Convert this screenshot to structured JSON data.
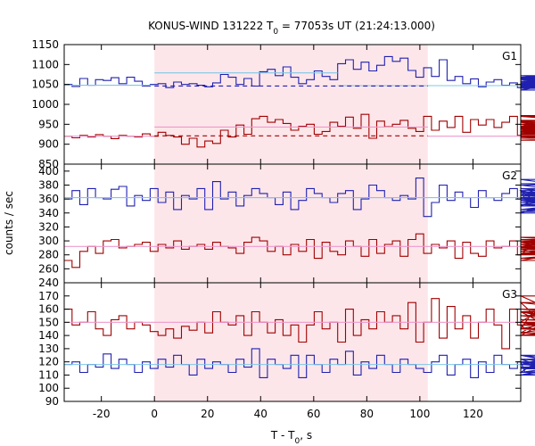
{
  "title": "KONUS-WIND 131222 T",
  "title_sub": "0",
  "title_tail": " = 77053s UT (21:24:13.000)",
  "ylabel": "counts / sec",
  "xlabel_main": "T - T",
  "xlabel_sub": "0",
  "xlabel_tail": ", s",
  "colors": {
    "red": "#a00000",
    "blue": "#2020b0",
    "lightblue": "#7ec8e8",
    "pink": "#ee99cc",
    "highlight": "#fde6ea"
  },
  "chart_data": [
    {
      "type": "line",
      "panel_label": "G1",
      "xlim": [
        -34,
        138
      ],
      "ylim": [
        850,
        1150
      ],
      "yticks": [
        850,
        900,
        950,
        1000,
        1050,
        1100,
        1150
      ],
      "xticks": [
        -20,
        0,
        20,
        40,
        60,
        80,
        100,
        120
      ],
      "highlight_x": [
        0,
        103
      ],
      "series": [
        {
          "color": "blue",
          "step": 2.944,
          "x0": -34,
          "values": [
            1050,
            1045,
            1065,
            1048,
            1062,
            1060,
            1067,
            1052,
            1068,
            1058,
            1046,
            1050,
            1052,
            1042,
            1056,
            1050,
            1052,
            1048,
            1044,
            1054,
            1075,
            1068,
            1050,
            1065,
            1046,
            1082,
            1088,
            1072,
            1094,
            1068,
            1052,
            1062,
            1084,
            1070,
            1062,
            1102,
            1112,
            1088,
            1106,
            1084,
            1098,
            1120,
            1108,
            1116,
            1085,
            1068,
            1092,
            1070,
            1112,
            1060,
            1070,
            1052,
            1064,
            1044,
            1056,
            1062,
            1048,
            1054,
            1042,
            1066,
            1050,
            1048,
            1040,
            1052,
            1036,
            1058,
            1068,
            1048,
            1072,
            1052,
            1058,
            1040,
            1064,
            1050,
            1052,
            1054,
            1046,
            1062,
            1044,
            1072,
            1056,
            1050,
            1068,
            1044,
            1046,
            1054,
            1044,
            1040,
            1058,
            1046,
            1068,
            1048,
            1064,
            1054,
            1042,
            1056,
            1040,
            1050
          ]
        },
        {
          "color": "red",
          "step": 2.944,
          "x0": -34,
          "values": [
            920,
            916,
            922,
            918,
            924,
            920,
            914,
            922,
            920,
            918,
            926,
            920,
            930,
            922,
            918,
            900,
            915,
            893,
            908,
            902,
            935,
            918,
            948,
            925,
            964,
            970,
            955,
            962,
            952,
            935,
            945,
            950,
            925,
            932,
            955,
            945,
            968,
            940,
            975,
            915,
            958,
            944,
            950,
            960,
            940,
            932,
            970,
            935,
            958,
            942,
            970,
            930,
            962,
            948,
            962,
            942,
            955,
            970,
            922,
            950,
            942,
            938,
            955,
            944,
            960,
            932,
            950,
            940,
            955,
            925,
            958,
            935,
            950,
            972,
            935,
            950,
            922,
            915,
            928,
            918,
            930,
            918,
            935,
            910,
            925,
            945,
            918,
            928,
            915,
            935,
            922,
            918,
            970,
            915,
            928,
            918,
            930,
            920
          ]
        }
      ],
      "levels": [
        {
          "color": "lightblue",
          "dashed": false,
          "segments": [
            [
              -34,
              0,
              1048
            ],
            [
              0,
              69,
              1079
            ],
            [
              69,
              138,
              1047
            ]
          ]
        },
        {
          "color": "blue",
          "dashed": true,
          "segments": [
            [
              0,
              103,
              1046
            ]
          ]
        },
        {
          "color": "pink",
          "dashed": false,
          "segments": [
            [
              -34,
              0,
              920
            ],
            [
              0,
              103,
              943
            ],
            [
              103,
              138,
              920
            ]
          ]
        },
        {
          "color": "red",
          "dashed": true,
          "segments": [
            [
              0,
              103,
              921
            ]
          ]
        }
      ]
    },
    {
      "type": "line",
      "panel_label": "G2",
      "xlim": [
        -34,
        138
      ],
      "ylim": [
        240,
        410
      ],
      "yticks": [
        240,
        260,
        280,
        300,
        320,
        340,
        360,
        380,
        400
      ],
      "xticks": [
        -20,
        0,
        20,
        40,
        60,
        80,
        100,
        120
      ],
      "highlight_x": [
        0,
        103
      ],
      "series": [
        {
          "color": "blue",
          "step": 2.944,
          "x0": -34,
          "values": [
            360,
            372,
            352,
            375,
            362,
            360,
            374,
            378,
            350,
            365,
            358,
            375,
            355,
            370,
            345,
            365,
            360,
            375,
            345,
            385,
            360,
            370,
            350,
            365,
            375,
            368,
            362,
            352,
            370,
            345,
            358,
            375,
            368,
            362,
            355,
            368,
            372,
            345,
            360,
            380,
            372,
            362,
            358,
            365,
            360,
            390,
            335,
            355,
            380,
            358,
            370,
            362,
            348,
            372,
            362,
            358,
            368,
            375,
            360,
            365,
            372,
            350,
            368,
            362,
            358,
            372,
            352,
            362,
            360,
            368,
            340,
            388,
            368,
            358,
            342,
            360,
            375,
            350,
            360,
            345,
            370,
            355,
            380,
            345,
            365,
            370,
            355,
            368,
            365,
            345,
            382,
            370,
            355,
            375,
            362,
            360,
            345,
            358
          ]
        },
        {
          "color": "red",
          "step": 2.944,
          "x0": -34,
          "values": [
            272,
            262,
            285,
            292,
            282,
            300,
            302,
            290,
            292,
            295,
            298,
            285,
            295,
            290,
            300,
            288,
            292,
            295,
            288,
            298,
            292,
            290,
            282,
            298,
            305,
            300,
            285,
            292,
            280,
            295,
            285,
            302,
            275,
            298,
            285,
            280,
            300,
            292,
            278,
            302,
            282,
            295,
            300,
            278,
            302,
            310,
            282,
            295,
            290,
            300,
            275,
            298,
            282,
            278,
            300,
            290,
            292,
            300,
            280,
            285,
            290,
            298,
            290,
            295,
            280,
            298,
            295,
            290,
            285,
            292,
            295,
            272,
            298,
            290,
            295,
            300,
            292,
            275,
            295,
            300,
            282,
            300,
            285,
            298,
            275,
            290,
            305,
            285,
            295,
            290,
            280,
            302,
            288,
            298,
            295,
            285,
            290,
            295
          ]
        }
      ],
      "levels": [
        {
          "color": "lightblue",
          "dashed": false,
          "segments": [
            [
              -34,
              138,
              362
            ]
          ]
        },
        {
          "color": "pink",
          "dashed": false,
          "segments": [
            [
              -34,
              138,
              292
            ]
          ]
        }
      ]
    },
    {
      "type": "line",
      "panel_label": "G3",
      "xlim": [
        -34,
        138
      ],
      "ylim": [
        90,
        180
      ],
      "yticks": [
        90,
        100,
        110,
        120,
        130,
        140,
        150,
        160,
        170
      ],
      "xticks": [
        -20,
        0,
        20,
        40,
        60,
        80,
        100,
        120
      ],
      "highlight_x": [
        0,
        103
      ],
      "series": [
        {
          "color": "red",
          "step": 2.944,
          "x0": -34,
          "values": [
            160,
            148,
            150,
            158,
            145,
            140,
            152,
            155,
            145,
            150,
            148,
            143,
            140,
            145,
            138,
            147,
            144,
            150,
            142,
            158,
            150,
            148,
            155,
            140,
            158,
            150,
            142,
            152,
            140,
            148,
            135,
            148,
            158,
            145,
            150,
            135,
            160,
            140,
            152,
            145,
            158,
            150,
            155,
            145,
            165,
            135,
            150,
            168,
            138,
            162,
            145,
            155,
            138,
            150,
            160,
            148,
            130,
            160,
            148,
            145,
            158,
            150,
            165,
            140,
            158,
            150,
            142,
            170,
            145,
            158,
            148,
            150,
            142,
            155,
            158,
            148,
            150,
            145,
            140,
            148,
            158,
            165,
            150,
            150,
            140,
            155,
            140,
            160,
            150,
            148,
            140,
            150,
            152,
            145,
            152,
            148,
            150,
            148
          ]
        },
        {
          "color": "blue",
          "step": 2.944,
          "x0": -34,
          "values": [
            118,
            120,
            112,
            118,
            116,
            126,
            115,
            122,
            118,
            112,
            120,
            115,
            122,
            116,
            125,
            118,
            110,
            122,
            115,
            120,
            118,
            112,
            122,
            116,
            130,
            108,
            122,
            118,
            115,
            125,
            108,
            125,
            118,
            112,
            122,
            118,
            128,
            110,
            120,
            115,
            125,
            118,
            112,
            122,
            118,
            115,
            112,
            120,
            125,
            110,
            118,
            122,
            108,
            120,
            112,
            125,
            118,
            115,
            120,
            112,
            118,
            122,
            115,
            120,
            110,
            118,
            125,
            115,
            120,
            112,
            122,
            116,
            118,
            112,
            125,
            115,
            120,
            110,
            122,
            118,
            116,
            120,
            115,
            112,
            120,
            118,
            122,
            115,
            118,
            120,
            112,
            118,
            122,
            115,
            120,
            112,
            118,
            115
          ]
        }
      ],
      "levels": [
        {
          "color": "pink",
          "dashed": false,
          "segments": [
            [
              -34,
              138,
              150
            ]
          ]
        },
        {
          "color": "lightblue",
          "dashed": false,
          "segments": [
            [
              -34,
              138,
              118
            ]
          ]
        }
      ]
    }
  ]
}
